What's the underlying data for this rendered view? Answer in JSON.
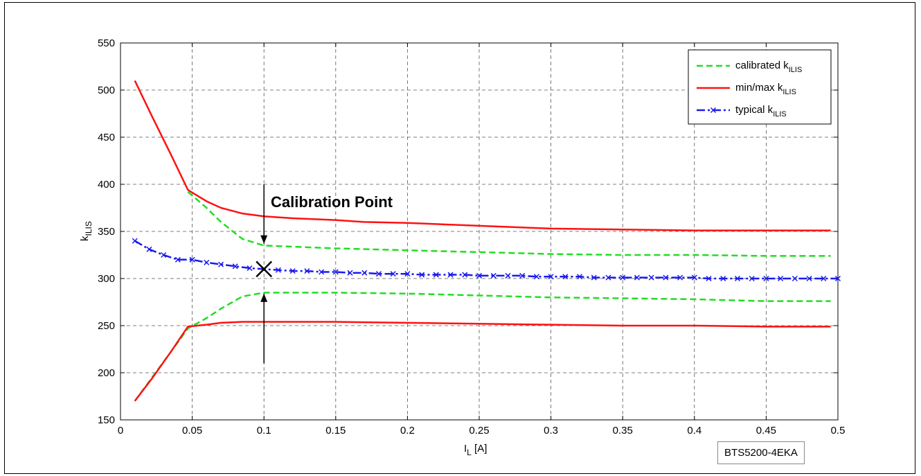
{
  "chart_data": {
    "type": "line",
    "xlabel": "I",
    "xlabel_sub": "L",
    "xlabel_unit": " [A]",
    "ylabel": "k",
    "ylabel_sub": "ILIS",
    "xlim": [
      0,
      0.5
    ],
    "ylim": [
      150,
      550
    ],
    "xticks": [
      0,
      0.05,
      0.1,
      0.15,
      0.2,
      0.25,
      0.3,
      0.35,
      0.4,
      0.45,
      0.5
    ],
    "xtick_labels": [
      "0",
      "0.05",
      "0.1",
      "0.15",
      "0.2",
      "0.25",
      "0.3",
      "0.35",
      "0.4",
      "0.45",
      "0.5"
    ],
    "yticks": [
      150,
      200,
      250,
      300,
      350,
      400,
      450,
      500,
      550
    ],
    "ytick_labels": [
      "150",
      "200",
      "250",
      "300",
      "350",
      "400",
      "450",
      "500",
      "550"
    ],
    "grid": true,
    "legend_position": "top-right",
    "series": [
      {
        "name": "calibrated k",
        "name_sub": "ILIS",
        "color": "#22dd22",
        "style": "dashed",
        "parts": [
          {
            "x": [
              0.047,
              0.06,
              0.07,
              0.085,
              0.1,
              0.15,
              0.2,
              0.25,
              0.3,
              0.35,
              0.4,
              0.45,
              0.495
            ],
            "y": [
              392,
              375,
              360,
              342,
              335,
              332,
              330,
              328,
              326,
              325,
              325,
              324,
              324
            ]
          },
          {
            "x": [
              0.01,
              0.022,
              0.035,
              0.047,
              0.06,
              0.07,
              0.085,
              0.1,
              0.15,
              0.2,
              0.25,
              0.3,
              0.35,
              0.4,
              0.45,
              0.495
            ],
            "y": [
              170,
              195,
              222,
              247,
              258,
              268,
              281,
              285,
              285,
              284,
              282,
              280,
              279,
              278,
              276,
              276
            ]
          }
        ]
      },
      {
        "name": "min/max k",
        "name_sub": "ILIS",
        "color": "#ff1111",
        "style": "solid",
        "parts": [
          {
            "x": [
              0.01,
              0.022,
              0.035,
              0.047,
              0.06,
              0.07,
              0.085,
              0.1,
              0.12,
              0.15,
              0.17,
              0.2,
              0.25,
              0.3,
              0.35,
              0.4,
              0.45,
              0.495
            ],
            "y": [
              510,
              472,
              432,
              394,
              382,
              375,
              369,
              366,
              364,
              362,
              360,
              359,
              356,
              353,
              352,
              351,
              351,
              351
            ]
          },
          {
            "x": [
              0.01,
              0.022,
              0.035,
              0.047,
              0.06,
              0.07,
              0.085,
              0.1,
              0.15,
              0.2,
              0.25,
              0.3,
              0.35,
              0.4,
              0.45,
              0.495
            ],
            "y": [
              170,
              194,
              222,
              249,
              251,
              253,
              254,
              254,
              254,
              253,
              252,
              251,
              250,
              250,
              249,
              249
            ]
          }
        ]
      },
      {
        "name": "typical k",
        "name_sub": "ILIS",
        "color": "#1a1aee",
        "style": "dash-dot",
        "marker": "x",
        "x": [
          0.01,
          0.02,
          0.03,
          0.04,
          0.05,
          0.06,
          0.07,
          0.08,
          0.09,
          0.1,
          0.11,
          0.12,
          0.13,
          0.14,
          0.15,
          0.16,
          0.17,
          0.18,
          0.19,
          0.2,
          0.21,
          0.22,
          0.23,
          0.24,
          0.25,
          0.26,
          0.27,
          0.28,
          0.29,
          0.3,
          0.31,
          0.32,
          0.33,
          0.34,
          0.35,
          0.36,
          0.37,
          0.38,
          0.39,
          0.4,
          0.41,
          0.42,
          0.43,
          0.44,
          0.45,
          0.46,
          0.47,
          0.48,
          0.49,
          0.5
        ],
        "y": [
          340,
          331,
          325,
          320,
          320,
          317,
          315,
          313,
          311,
          310,
          309,
          308,
          308,
          307,
          307,
          306,
          306,
          305,
          305,
          305,
          304,
          304,
          304,
          304,
          303,
          303,
          303,
          303,
          302,
          302,
          302,
          302,
          301,
          301,
          301,
          301,
          301,
          301,
          301,
          301,
          300,
          300,
          300,
          300,
          300,
          300,
          300,
          300,
          300,
          300
        ]
      }
    ],
    "annotation": {
      "text": "Calibration Point",
      "x": 0.1,
      "y": 310,
      "arrow_down_from": 400,
      "arrow_down_to": 337,
      "arrow_up_from": 210,
      "arrow_up_to": 284
    },
    "part_label": "BTS5200-4EKA"
  }
}
